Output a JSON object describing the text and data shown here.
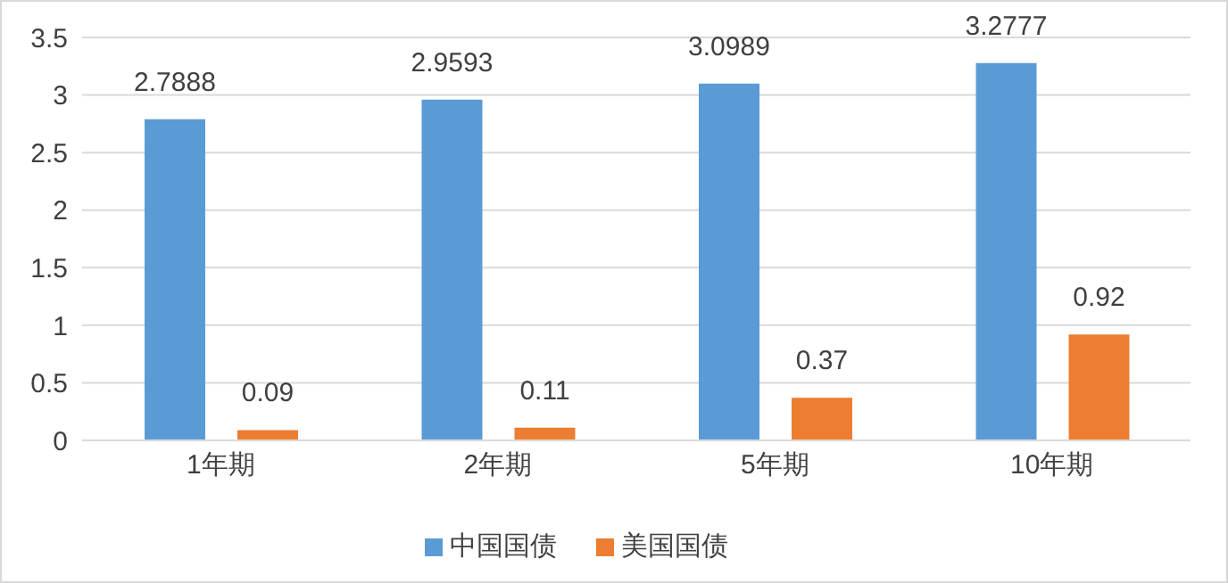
{
  "chart_data": {
    "type": "bar",
    "categories": [
      "1年期",
      "2年期",
      "5年期",
      "10年期"
    ],
    "series": [
      {
        "name": "中国国债",
        "color": "#5b9bd5",
        "values": [
          2.7888,
          2.9593,
          3.0989,
          3.2777
        ]
      },
      {
        "name": "美国国债",
        "color": "#ed7d31",
        "values": [
          0.09,
          0.11,
          0.37,
          0.92
        ]
      }
    ],
    "ylim": [
      0,
      3.5
    ],
    "yticks": [
      0,
      0.5,
      1,
      1.5,
      2,
      2.5,
      3,
      3.5
    ],
    "grid": "y",
    "legend": "bottom",
    "data_labels": true
  }
}
